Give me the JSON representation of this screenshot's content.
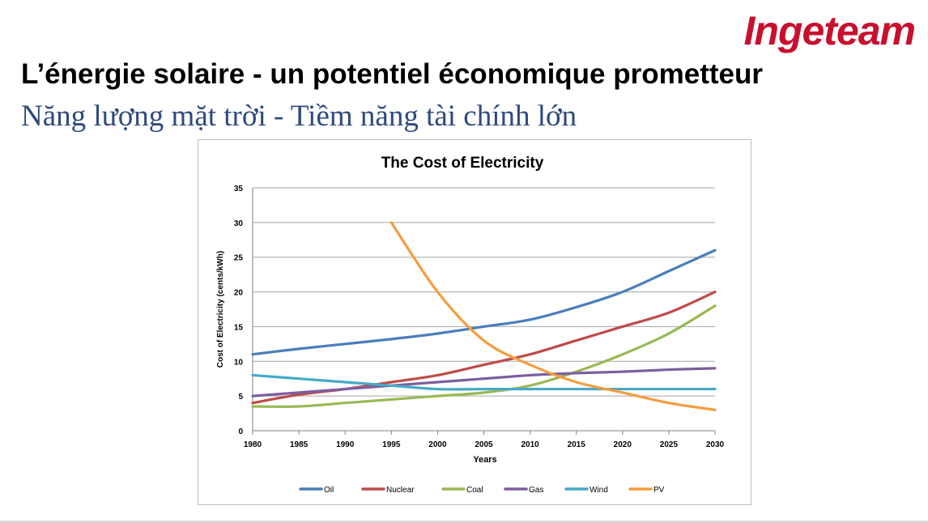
{
  "header": {
    "logo_text": "Ingeteam",
    "logo_color": "#c8102e",
    "title_fr": "L’énergie solaire - un potentiel économique prometteur",
    "title_vi": "Năng lượng mặt trời - Tiềm năng tài chính lớn",
    "title_vi_color": "#2e4a7d"
  },
  "chart_data": {
    "type": "line",
    "title": "The Cost of Electricity",
    "xlabel": "Years",
    "ylabel": "Cost of Electricity (cents/kWh)",
    "ylim": [
      0,
      35
    ],
    "yticks": [
      0,
      5,
      10,
      15,
      20,
      25,
      30,
      35
    ],
    "xlim": [
      1980,
      2030
    ],
    "x": [
      1980,
      1985,
      1990,
      1995,
      2000,
      2005,
      2010,
      2015,
      2020,
      2025,
      2030
    ],
    "grid": true,
    "legend_position": "bottom",
    "series": [
      {
        "name": "Oil",
        "color": "#4a7ebb",
        "points": [
          [
            1980,
            11
          ],
          [
            1985,
            11.8
          ],
          [
            1990,
            12.5
          ],
          [
            1995,
            13.2
          ],
          [
            2000,
            14
          ],
          [
            2005,
            15
          ],
          [
            2010,
            16
          ],
          [
            2015,
            17.8
          ],
          [
            2020,
            20
          ],
          [
            2025,
            23
          ],
          [
            2030,
            26
          ]
        ]
      },
      {
        "name": "Nuclear",
        "color": "#be4b48",
        "points": [
          [
            1980,
            4
          ],
          [
            1985,
            5.2
          ],
          [
            1990,
            6
          ],
          [
            1995,
            7
          ],
          [
            2000,
            8
          ],
          [
            2005,
            9.5
          ],
          [
            2010,
            11
          ],
          [
            2015,
            13
          ],
          [
            2020,
            15
          ],
          [
            2025,
            17
          ],
          [
            2030,
            20
          ]
        ]
      },
      {
        "name": "Coal",
        "color": "#98b954",
        "points": [
          [
            1980,
            3.5
          ],
          [
            1985,
            3.5
          ],
          [
            1990,
            4
          ],
          [
            1995,
            4.5
          ],
          [
            2000,
            5
          ],
          [
            2005,
            5.5
          ],
          [
            2010,
            6.5
          ],
          [
            2015,
            8.5
          ],
          [
            2020,
            11
          ],
          [
            2025,
            14
          ],
          [
            2030,
            18
          ]
        ]
      },
      {
        "name": "Gas",
        "color": "#7d5fa0",
        "points": [
          [
            1980,
            5
          ],
          [
            1985,
            5.5
          ],
          [
            1990,
            6
          ],
          [
            1995,
            6.5
          ],
          [
            2000,
            7
          ],
          [
            2005,
            7.5
          ],
          [
            2010,
            8
          ],
          [
            2015,
            8.3
          ],
          [
            2020,
            8.5
          ],
          [
            2025,
            8.8
          ],
          [
            2030,
            9
          ]
        ]
      },
      {
        "name": "Wind",
        "color": "#46aac5",
        "points": [
          [
            1980,
            8
          ],
          [
            1985,
            7.5
          ],
          [
            1990,
            7
          ],
          [
            1995,
            6.5
          ],
          [
            2000,
            6
          ],
          [
            2005,
            6
          ],
          [
            2010,
            6
          ],
          [
            2015,
            6
          ],
          [
            2020,
            6
          ],
          [
            2025,
            6
          ],
          [
            2030,
            6
          ]
        ]
      },
      {
        "name": "PV",
        "color": "#f59d3d",
        "points": [
          [
            1995,
            30
          ],
          [
            2000,
            20
          ],
          [
            2005,
            13
          ],
          [
            2010,
            9.5
          ],
          [
            2015,
            7
          ],
          [
            2020,
            5.5
          ],
          [
            2025,
            4
          ],
          [
            2030,
            3
          ]
        ]
      }
    ]
  }
}
